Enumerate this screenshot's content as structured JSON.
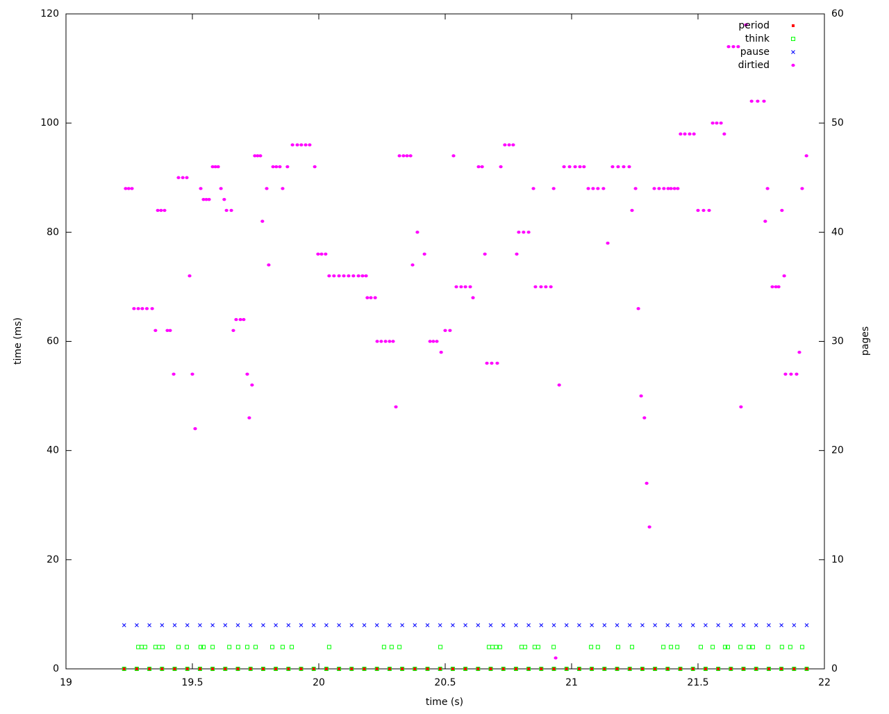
{
  "chart_data": {
    "type": "scatter",
    "x_label": "time (s)",
    "y_label": "time (ms)",
    "y2_label": "pages",
    "xlim": [
      19,
      22
    ],
    "xticks": [
      19,
      19.5,
      20,
      20.5,
      21,
      21.5,
      22
    ],
    "ylim": [
      0,
      120
    ],
    "yticks": [
      0,
      20,
      40,
      60,
      80,
      100,
      120
    ],
    "y2lim": [
      0,
      60
    ],
    "y2ticks": [
      0,
      10,
      20,
      30,
      40,
      50,
      60
    ],
    "legend": "top-right",
    "series": [
      {
        "name": "period",
        "color": "#ff0000",
        "marker": "filled-square",
        "x": [
          19.23,
          19.28,
          19.33,
          19.38,
          19.43,
          19.48,
          19.53,
          19.58,
          19.63,
          19.68,
          19.73,
          19.78,
          19.83,
          19.88,
          19.93,
          19.98,
          20.03,
          20.08,
          20.13,
          20.18,
          20.23,
          20.28,
          20.33,
          20.38,
          20.43,
          20.48,
          20.53,
          20.58,
          20.63,
          20.68,
          20.73,
          20.78,
          20.83,
          20.88,
          20.93,
          20.98,
          21.03,
          21.08,
          21.13,
          21.18,
          21.23,
          21.28,
          21.33,
          21.38,
          21.43,
          21.48,
          21.53,
          21.58,
          21.63,
          21.68,
          21.73,
          21.78,
          21.83,
          21.88,
          21.93
        ],
        "values": [
          0,
          0,
          0,
          0,
          0,
          0,
          0,
          0,
          0,
          0,
          0,
          0,
          0,
          0,
          0,
          0,
          0,
          0,
          0,
          0,
          0,
          0,
          0,
          0,
          0,
          0,
          0,
          0,
          0,
          0,
          0,
          0,
          0,
          0,
          0,
          0,
          0,
          0,
          0,
          0,
          0,
          0,
          0,
          0,
          0,
          0,
          0,
          0,
          0,
          0,
          0,
          0,
          0,
          0,
          0
        ]
      },
      {
        "name": "think",
        "color": "#00ff00",
        "marker": "open-square",
        "x": [
          19.23,
          19.28,
          19.33,
          19.38,
          19.43,
          19.48,
          19.53,
          19.58,
          19.63,
          19.68,
          19.73,
          19.78,
          19.83,
          19.88,
          19.93,
          19.98,
          20.03,
          20.08,
          20.13,
          20.18,
          20.23,
          20.28,
          20.33,
          20.38,
          20.43,
          20.48,
          20.53,
          20.58,
          20.63,
          20.68,
          20.73,
          20.78,
          20.83,
          20.88,
          20.93,
          20.98,
          21.03,
          21.08,
          21.13,
          21.18,
          21.23,
          21.28,
          21.33,
          21.38,
          21.43,
          21.48,
          21.53,
          21.58,
          21.63,
          21.68,
          21.73,
          21.78,
          21.83,
          21.88,
          21.93,
          19.286,
          19.299,
          19.313,
          19.354,
          19.368,
          19.382,
          19.445,
          19.478,
          19.533,
          19.544,
          19.58,
          19.646,
          19.681,
          19.717,
          19.75,
          19.816,
          19.857,
          19.893,
          20.041,
          20.258,
          20.288,
          20.319,
          20.481,
          20.673,
          20.687,
          20.701,
          20.717,
          20.802,
          20.816,
          20.854,
          20.868,
          20.929,
          21.077,
          21.104,
          21.184,
          21.239,
          21.363,
          21.393,
          21.418,
          21.511,
          21.558,
          21.607,
          21.618,
          21.668,
          21.701,
          21.717,
          21.777,
          21.832,
          21.865,
          21.912
        ],
        "values": [
          0,
          0,
          0,
          0,
          0,
          0,
          0,
          0,
          0,
          0,
          0,
          0,
          0,
          0,
          0,
          0,
          0,
          0,
          0,
          0,
          0,
          0,
          0,
          0,
          0,
          0,
          0,
          0,
          0,
          0,
          0,
          0,
          0,
          0,
          0,
          0,
          0,
          0,
          0,
          0,
          0,
          0,
          0,
          0,
          0,
          0,
          0,
          0,
          0,
          0,
          0,
          0,
          0,
          0,
          0,
          4,
          4,
          4,
          4,
          4,
          4,
          4,
          4,
          4,
          4,
          4,
          4,
          4,
          4,
          4,
          4,
          4,
          4,
          4,
          4,
          4,
          4,
          4,
          4,
          4,
          4,
          4,
          4,
          4,
          4,
          4,
          4,
          4,
          4,
          4,
          4,
          4,
          4,
          4,
          4,
          4,
          4,
          4,
          4,
          4,
          4,
          4,
          4,
          4,
          4
        ]
      },
      {
        "name": "pause",
        "color": "#0000ff",
        "marker": "cross",
        "x": [
          19.23,
          19.28,
          19.33,
          19.38,
          19.43,
          19.48,
          19.53,
          19.58,
          19.63,
          19.68,
          19.73,
          19.78,
          19.83,
          19.88,
          19.93,
          19.98,
          20.03,
          20.08,
          20.13,
          20.18,
          20.23,
          20.28,
          20.33,
          20.38,
          20.43,
          20.48,
          20.53,
          20.58,
          20.63,
          20.68,
          20.73,
          20.78,
          20.83,
          20.88,
          20.93,
          20.98,
          21.03,
          21.08,
          21.13,
          21.18,
          21.23,
          21.28,
          21.33,
          21.38,
          21.43,
          21.48,
          21.53,
          21.58,
          21.63,
          21.68,
          21.73,
          21.78,
          21.83,
          21.88,
          21.93
        ],
        "values": [
          8,
          8,
          8,
          8,
          8,
          8,
          8,
          8,
          8,
          8,
          8,
          8,
          8,
          8,
          8,
          8,
          8,
          8,
          8,
          8,
          8,
          8,
          8,
          8,
          8,
          8,
          8,
          8,
          8,
          8,
          8,
          8,
          8,
          8,
          8,
          8,
          8,
          8,
          8,
          8,
          8,
          8,
          8,
          8,
          8,
          8,
          8,
          8,
          8,
          8,
          8,
          8,
          8,
          8,
          8
        ]
      },
      {
        "name": "dirtied",
        "color": "#ff00ff",
        "marker": "dot",
        "axis": "y2",
        "x": [
          19.236,
          19.248,
          19.261,
          19.269,
          19.286,
          19.302,
          19.32,
          19.341,
          19.354,
          19.363,
          19.376,
          19.39,
          19.401,
          19.412,
          19.426,
          19.445,
          19.462,
          19.478,
          19.489,
          19.5,
          19.511,
          19.533,
          19.544,
          19.555,
          19.566,
          19.58,
          19.591,
          19.602,
          19.613,
          19.626,
          19.635,
          19.654,
          19.662,
          19.673,
          19.69,
          19.703,
          19.717,
          19.725,
          19.736,
          19.747,
          19.758,
          19.769,
          19.777,
          19.794,
          19.802,
          19.819,
          19.832,
          19.846,
          19.857,
          19.876,
          19.896,
          19.915,
          19.931,
          19.948,
          19.964,
          19.984,
          19.997,
          20.011,
          20.027,
          20.041,
          20.06,
          20.08,
          20.099,
          20.118,
          20.137,
          20.157,
          20.173,
          20.187,
          20.192,
          20.206,
          20.223,
          20.231,
          20.247,
          20.264,
          20.28,
          20.294,
          20.305,
          20.319,
          20.335,
          20.349,
          20.363,
          20.371,
          20.39,
          20.418,
          20.44,
          20.453,
          20.467,
          20.484,
          20.5,
          20.519,
          20.533,
          20.544,
          20.563,
          20.58,
          20.599,
          20.61,
          20.632,
          20.646,
          20.657,
          20.665,
          20.684,
          20.706,
          20.72,
          20.736,
          20.753,
          20.769,
          20.783,
          20.791,
          20.81,
          20.83,
          20.849,
          20.857,
          20.879,
          20.898,
          20.918,
          20.929,
          20.937,
          20.951,
          20.97,
          20.992,
          21.014,
          21.033,
          21.049,
          21.066,
          21.085,
          21.104,
          21.126,
          21.143,
          21.162,
          21.184,
          21.206,
          21.228,
          21.239,
          21.253,
          21.264,
          21.275,
          21.288,
          21.297,
          21.308,
          21.327,
          21.346,
          21.365,
          21.382,
          21.393,
          21.407,
          21.42,
          21.431,
          21.448,
          21.467,
          21.484,
          21.5,
          21.522,
          21.544,
          21.558,
          21.574,
          21.591,
          21.604,
          21.621,
          21.64,
          21.659,
          21.67,
          21.69,
          21.712,
          21.736,
          21.761,
          21.766,
          21.775,
          21.794,
          21.808,
          21.819,
          21.832,
          21.841,
          21.846,
          21.868,
          21.89,
          21.901,
          21.912,
          21.929
        ],
        "values": [
          44,
          44,
          44,
          33,
          33,
          33,
          33,
          33,
          31,
          42,
          42,
          42,
          31,
          31,
          27,
          45,
          45,
          45,
          36,
          27,
          22,
          44,
          43,
          43,
          43,
          46,
          46,
          46,
          44,
          43,
          42,
          42,
          31,
          32,
          32,
          32,
          27,
          23,
          26,
          47,
          47,
          47,
          41,
          44,
          37,
          46,
          46,
          46,
          44,
          46,
          48,
          48,
          48,
          48,
          48,
          46,
          38,
          38,
          38,
          36,
          36,
          36,
          36,
          36,
          36,
          36,
          36,
          36,
          34,
          34,
          34,
          30,
          30,
          30,
          30,
          30,
          24,
          47,
          47,
          47,
          47,
          37,
          40,
          38,
          30,
          30,
          30,
          29,
          31,
          31,
          47,
          35,
          35,
          35,
          35,
          34,
          46,
          46,
          38,
          28,
          28,
          28,
          46,
          48,
          48,
          48,
          38,
          40,
          40,
          40,
          44,
          35,
          35,
          35,
          35,
          44,
          1,
          26,
          46,
          46,
          46,
          46,
          46,
          44,
          44,
          44,
          44,
          39,
          46,
          46,
          46,
          46,
          42,
          44,
          33,
          25,
          23,
          17,
          13,
          44,
          44,
          44,
          44,
          44,
          44,
          44,
          49,
          49,
          49,
          49,
          42,
          42,
          42,
          50,
          50,
          50,
          49,
          57,
          57,
          57,
          24,
          59,
          52,
          52,
          52,
          41,
          44,
          35,
          35,
          35,
          42,
          36,
          27,
          27,
          27,
          29,
          44,
          47
        ]
      }
    ]
  }
}
